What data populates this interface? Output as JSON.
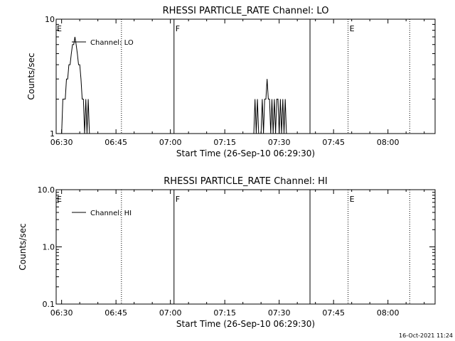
{
  "chart_data": [
    {
      "type": "line",
      "title": "RHESSI PARTICLE_RATE Channel: LO",
      "xlabel": "Start Time (26-Sep-10 06:29:30)",
      "ylabel": "Counts/sec",
      "yscale": "log",
      "ylim": [
        1,
        10
      ],
      "y_ticks": [
        {
          "value": 1,
          "label": "1"
        },
        {
          "value": 10,
          "label": "10"
        }
      ],
      "xlim": [
        "06:28:30",
        "08:13:00"
      ],
      "x_ticks": [
        "06:30",
        "06:45",
        "07:00",
        "07:15",
        "07:30",
        "07:45",
        "08:00"
      ],
      "legend": {
        "position": "top-left",
        "entries": [
          "Channel: LO"
        ]
      },
      "series": [
        {
          "name": "Channel: LO",
          "points": [
            {
              "x": "06:30:00",
              "y": 1
            },
            {
              "x": "06:30:20",
              "y": 2
            },
            {
              "x": "06:30:40",
              "y": 2
            },
            {
              "x": "06:31:00",
              "y": 2
            },
            {
              "x": "06:31:20",
              "y": 3
            },
            {
              "x": "06:31:40",
              "y": 3
            },
            {
              "x": "06:32:00",
              "y": 4
            },
            {
              "x": "06:32:20",
              "y": 4
            },
            {
              "x": "06:32:40",
              "y": 5
            },
            {
              "x": "06:33:00",
              "y": 6
            },
            {
              "x": "06:33:20",
              "y": 6
            },
            {
              "x": "06:33:40",
              "y": 7
            },
            {
              "x": "06:34:00",
              "y": 6
            },
            {
              "x": "06:34:20",
              "y": 5
            },
            {
              "x": "06:34:40",
              "y": 4
            },
            {
              "x": "06:35:00",
              "y": 4
            },
            {
              "x": "06:35:20",
              "y": 3
            },
            {
              "x": "06:35:40",
              "y": 2
            },
            {
              "x": "06:36:00",
              "y": 2
            },
            {
              "x": "06:36:20",
              "y": 1
            },
            {
              "x": "06:36:40",
              "y": 2
            },
            {
              "x": "06:37:00",
              "y": 1
            },
            {
              "x": "06:37:20",
              "y": 2
            },
            {
              "x": "06:37:40",
              "y": 1
            },
            {
              "x": "07:23:00",
              "y": 1
            },
            {
              "x": "07:23:20",
              "y": 2
            },
            {
              "x": "07:23:40",
              "y": 1
            },
            {
              "x": "07:24:00",
              "y": 2
            },
            {
              "x": "07:24:20",
              "y": 1
            },
            {
              "x": "07:25:00",
              "y": 1
            },
            {
              "x": "07:25:20",
              "y": 2
            },
            {
              "x": "07:25:40",
              "y": 1
            },
            {
              "x": "07:26:00",
              "y": 2
            },
            {
              "x": "07:26:20",
              "y": 2
            },
            {
              "x": "07:26:40",
              "y": 3
            },
            {
              "x": "07:27:00",
              "y": 2
            },
            {
              "x": "07:27:20",
              "y": 2
            },
            {
              "x": "07:27:40",
              "y": 1
            },
            {
              "x": "07:28:00",
              "y": 2
            },
            {
              "x": "07:28:20",
              "y": 1
            },
            {
              "x": "07:28:40",
              "y": 2
            },
            {
              "x": "07:29:00",
              "y": 1
            },
            {
              "x": "07:29:20",
              "y": 2
            },
            {
              "x": "07:29:40",
              "y": 2
            },
            {
              "x": "07:30:00",
              "y": 1
            },
            {
              "x": "07:30:20",
              "y": 2
            },
            {
              "x": "07:30:40",
              "y": 1
            },
            {
              "x": "07:31:00",
              "y": 2
            },
            {
              "x": "07:31:20",
              "y": 1
            },
            {
              "x": "07:31:40",
              "y": 2
            },
            {
              "x": "07:32:00",
              "y": 1
            }
          ]
        }
      ],
      "event_lines": [
        {
          "x": "06:46:30",
          "style": "dotted",
          "label": ""
        },
        {
          "x": "07:01:00",
          "style": "solid",
          "label": "F"
        },
        {
          "x": "07:38:30",
          "style": "solid",
          "label": ""
        },
        {
          "x": "07:49:00",
          "style": "dotted",
          "label": "E"
        },
        {
          "x": "08:06:00",
          "style": "dotted",
          "label": ""
        }
      ],
      "corner_markers": [
        {
          "x": "06:28:30",
          "label": "E"
        }
      ]
    },
    {
      "type": "line",
      "title": "RHESSI PARTICLE_RATE Channel: HI",
      "xlabel": "Start Time (26-Sep-10 06:29:30)",
      "ylabel": "Counts/sec",
      "yscale": "log",
      "ylim": [
        0.1,
        10
      ],
      "y_ticks": [
        {
          "value": 0.1,
          "label": "0.1"
        },
        {
          "value": 1,
          "label": "1.0"
        },
        {
          "value": 10,
          "label": "10.0"
        }
      ],
      "xlim": [
        "06:28:30",
        "08:13:00"
      ],
      "x_ticks": [
        "06:30",
        "06:45",
        "07:00",
        "07:15",
        "07:30",
        "07:45",
        "08:00"
      ],
      "legend": {
        "position": "top-left",
        "entries": [
          "Channel: HI"
        ]
      },
      "series": [
        {
          "name": "Channel: HI",
          "points": []
        }
      ],
      "event_lines": [
        {
          "x": "06:46:30",
          "style": "dotted",
          "label": ""
        },
        {
          "x": "07:01:00",
          "style": "solid",
          "label": "F"
        },
        {
          "x": "07:38:30",
          "style": "solid",
          "label": ""
        },
        {
          "x": "07:49:00",
          "style": "dotted",
          "label": "E"
        },
        {
          "x": "08:06:00",
          "style": "dotted",
          "label": ""
        }
      ],
      "corner_markers": [
        {
          "x": "06:28:30",
          "label": "E"
        }
      ]
    }
  ],
  "footer": {
    "timestamp": "16-Oct-2021 11:24"
  }
}
